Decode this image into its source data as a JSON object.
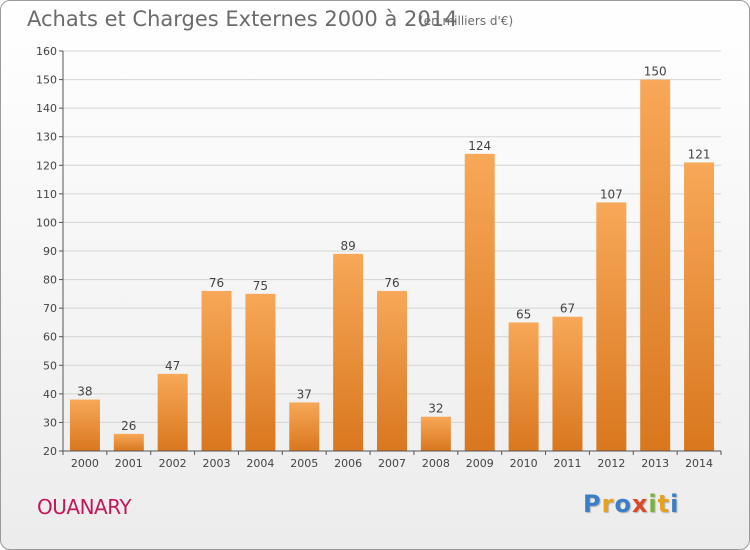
{
  "header": {
    "title": "Achats et Charges Externes 2000 à 2014",
    "subtitle": "(en milliers d'€)"
  },
  "footer": {
    "commune": "OUANARY",
    "logo": "Proxiti",
    "logo_colors": [
      "#3a7ec8",
      "#e8a11e",
      "#3a7ec8",
      "#d84a2b",
      "#7bb33a",
      "#e8a11e",
      "#3a7ec8"
    ]
  },
  "colors": {
    "bar_light": "#f7a858",
    "bar_dark": "#d9771e",
    "grid": "#d4d4d4",
    "axis": "#555555",
    "text": "#444444"
  },
  "chart_data": {
    "type": "bar",
    "categories": [
      "2000",
      "2001",
      "2002",
      "2003",
      "2004",
      "2005",
      "2006",
      "2007",
      "2008",
      "2009",
      "2010",
      "2011",
      "2012",
      "2013",
      "2014"
    ],
    "values": [
      38,
      26,
      47,
      76,
      75,
      37,
      89,
      76,
      32,
      124,
      65,
      67,
      107,
      150,
      121
    ],
    "ylim": [
      20,
      160
    ],
    "yticks": [
      20,
      30,
      40,
      50,
      60,
      70,
      80,
      90,
      100,
      110,
      120,
      130,
      140,
      150,
      160
    ],
    "grid": true,
    "data_labels": true
  }
}
